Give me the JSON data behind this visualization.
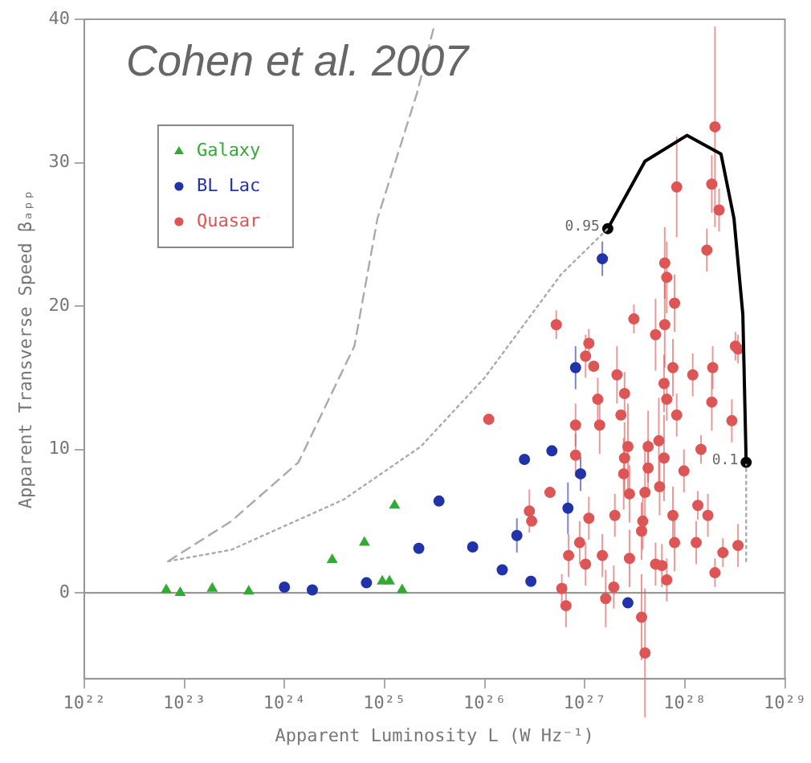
{
  "chart_data": {
    "type": "scatter",
    "xlabel": "Apparent Luminosity L (W Hz⁻¹)",
    "ylabel": "Apparent Transverse Speed βₐₚₚ",
    "log": "x",
    "grid": false,
    "legend": "top left",
    "xlim": [
      1e+22,
      1e+29
    ],
    "xticks": [
      {
        "value": 1e+22,
        "label": "10²²"
      },
      {
        "value": 1e+23,
        "label": "10²³"
      },
      {
        "value": 1e+24,
        "label": "10²⁴"
      },
      {
        "value": 1e+25,
        "label": "10²⁵"
      },
      {
        "value": 1e+26,
        "label": "10²⁶"
      },
      {
        "value": 1e+27,
        "label": "10²⁷"
      },
      {
        "value": 1e+28,
        "label": "10²⁸"
      },
      {
        "value": 1e+29,
        "label": "10²⁹"
      }
    ],
    "ylim": [
      -6,
      40
    ],
    "yticks": [
      0,
      10,
      20,
      30,
      40
    ],
    "ref_lines": [
      {
        "axis": "y",
        "value": 0,
        "color": "#999999"
      }
    ],
    "annotations": [
      "Cohen et al. 2007",
      {
        "text": "0.95",
        "x": 1.7e+27,
        "y": 25.4
      },
      {
        "text": "0.1",
        "x": 4.1e+28,
        "y": 9.1
      }
    ],
    "series": [
      {
        "type": "line",
        "color": "#aaaaaa",
        "line_style": "dashed",
        "marker": "none",
        "x": [
          6.9e+22,
          2.95e+23,
          1.38e+24,
          5e+24,
          8.5e+24,
          2.1e+25,
          3.1e+25
        ],
        "values": [
          2.2,
          5.0,
          9.1,
          17.2,
          26.1,
          34.8,
          39.4
        ]
      },
      {
        "type": "line",
        "color": "#aaaaaa",
        "line_style": "dotted",
        "marker": "none",
        "x": [
          6.9e+22,
          2.95e+23,
          3.9e+24,
          2.3e+25,
          1e+26,
          5.8e+26,
          1.7e+27
        ],
        "values": [
          2.2,
          3.0,
          6.5,
          10.2,
          15,
          22.2,
          25.4
        ]
      },
      {
        "type": "line",
        "color": "#000000",
        "line_style": "solid",
        "marker": "none",
        "x": [
          1.7e+27,
          4e+27,
          1.05e+28,
          2.3e+28,
          3.1e+28,
          3.8e+28,
          4.1e+28
        ],
        "values": [
          25.4,
          30.1,
          31.9,
          30.6,
          26.1,
          19.4,
          9.1
        ]
      },
      {
        "type": "line",
        "color": "#aaaaaa",
        "line_style": "dotted",
        "marker": "none",
        "x": [
          4.1e+28,
          4.1e+28
        ],
        "values": [
          9.1,
          2.2
        ]
      },
      {
        "type": "scatter",
        "color": "#000000",
        "marker": "circle",
        "x": [
          1.7e+27,
          4.1e+28
        ],
        "values": [
          25.4,
          9.1
        ]
      },
      {
        "name": "Galaxy",
        "type": "scatter",
        "color": "#33aa33",
        "marker": "triangle",
        "x": [
          6.6e+22,
          9.1e+22,
          1.9e+23,
          4.4e+23,
          3e+24,
          6.3e+24,
          1.26e+25,
          9.5e+24,
          1.12e+25,
          1.5e+25
        ],
        "values": [
          0.2,
          0,
          0.3,
          0.1,
          2.3,
          3.5,
          6.1,
          0.8,
          0.8,
          0.2
        ]
      },
      {
        "name": "BL Lac",
        "type": "scatter",
        "color": "#2233aa",
        "marker": "circle",
        "x": [
          1e+24,
          1.9e+24,
          6.6e+24,
          2.2e+25,
          3.5e+25,
          7.6e+25,
          1.5e+26,
          2.1e+26,
          2.5e+26,
          2.9e+26,
          4.7e+26,
          6.8e+26,
          9.1e+26,
          8.1e+26,
          2.7e+27,
          1.5e+27
        ],
        "values": [
          0.4,
          0.2,
          0.7,
          3.1,
          6.4,
          3.2,
          1.6,
          4.0,
          9.3,
          0.8,
          9.9,
          5.9,
          8.3,
          15.7,
          -0.7,
          23.3
        ],
        "errors": [
          null,
          null,
          null,
          null,
          null,
          null,
          null,
          1.2,
          null,
          null,
          null,
          1.8,
          1.2,
          1.5,
          null,
          1.2
        ]
      },
      {
        "name": "Quasar",
        "type": "scatter",
        "color": "#dd5555",
        "marker": "circle",
        "x": [
          1.1e+26,
          2.8e+26,
          2.95e+26,
          4.5e+26,
          8.1e+26,
          8.1e+26,
          1.02e+27,
          1.23e+27,
          1.41e+27,
          1.35e+27,
          2.1e+27,
          2.5e+27,
          2.3e+27,
          2.7e+27,
          2.5e+27,
          2.45e+27,
          2.8e+27,
          2e+27,
          1.1e+27,
          8.9e+26,
          6.9e+26,
          1.02e+27,
          1.5e+27,
          2.8e+27,
          5.9e+26,
          6.5e+26,
          1.62e+27,
          1.95e+27,
          3.7e+27,
          4e+27,
          4.3e+27,
          4.3e+27,
          4e+27,
          3.8e+27,
          3.7e+27,
          5.5e+27,
          6.2e+27,
          5.6e+27,
          5.1e+27,
          5.9e+27,
          6.6e+27,
          7.6e+27,
          7.9e+27,
          7.6e+27,
          6.2e+27,
          6.6e+27,
          8.3e+27,
          9.8e+27,
          1.2e+28,
          1.45e+28,
          1.35e+28,
          1.3e+28,
          1.7e+28,
          1.86e+28,
          1.9e+28,
          2e+28,
          2.4e+28,
          2.95e+28,
          3.4e+28,
          3.4e+28,
          2e+28,
          8.3e+27,
          1.86e+28,
          2.2e+28,
          1.66e+28,
          6.3e+27,
          6.6e+27,
          7.9e+27,
          6.3e+27,
          5.1e+27,
          3.1e+27,
          5.2e+26,
          1.1e+27,
          3.2e+28
        ],
        "values": [
          12.1,
          5.7,
          5.0,
          7.0,
          9.6,
          11.7,
          16.5,
          15.8,
          11.7,
          13.5,
          15.2,
          13.9,
          12.4,
          10.2,
          9.4,
          8.3,
          6.9,
          5.4,
          5.2,
          3.5,
          2.6,
          2.0,
          2.6,
          2.4,
          0.3,
          -0.9,
          -0.4,
          0.4,
          -1.7,
          -4.2,
          10.2,
          8.7,
          7.0,
          5.0,
          4.3,
          10.6,
          9.4,
          7.4,
          2.0,
          1.9,
          0.9,
          5.4,
          3.5,
          15.7,
          14.6,
          13.5,
          12.4,
          8.5,
          15.2,
          10.0,
          6.1,
          3.5,
          5.4,
          13.3,
          15.7,
          1.4,
          2.8,
          12.0,
          3.3,
          17.0,
          32.5,
          28.3,
          28.5,
          26.7,
          23.9,
          23.0,
          22.0,
          20.2,
          18.7,
          18.0,
          19.1,
          18.7,
          17.4,
          17.2
        ],
        "errors": [
          null,
          1.5,
          null,
          null,
          1.5,
          1.5,
          1.5,
          null,
          2,
          1.5,
          2,
          1.5,
          null,
          3,
          2.5,
          2.5,
          2,
          1.5,
          1.5,
          1.5,
          1.5,
          1.5,
          1.5,
          2,
          1,
          1.5,
          2,
          1.5,
          3,
          4.5,
          2.5,
          2,
          3,
          2,
          2,
          3,
          3,
          2,
          1.5,
          1.5,
          1.5,
          2,
          2,
          2,
          2,
          1.5,
          1.5,
          1.5,
          1.5,
          1,
          1,
          1.5,
          1.5,
          2,
          1.5,
          1,
          1,
          1.5,
          1.5,
          1,
          7,
          3.5,
          2,
          1.5,
          1.5,
          2.5,
          2.5,
          2,
          3,
          2.5,
          1,
          1,
          1,
          1
        ]
      }
    ]
  }
}
